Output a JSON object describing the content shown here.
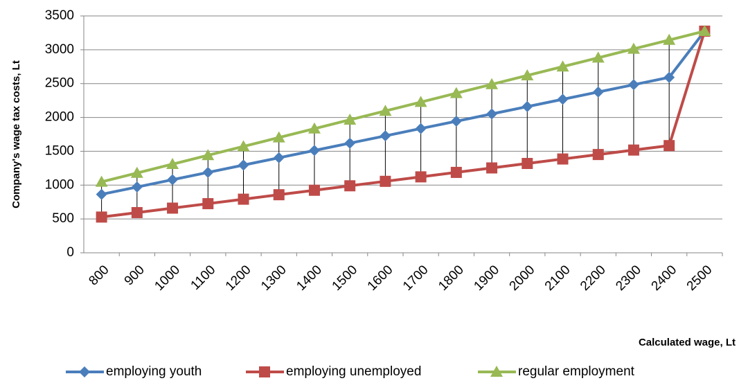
{
  "chart_data": {
    "type": "line",
    "y_axis_label": "Company's  wage tax costs, Lt",
    "x_axis_label": "Calculated wage, Lt",
    "categories": [
      "800",
      "900",
      "1000",
      "1100",
      "1200",
      "1300",
      "1400",
      "1500",
      "1600",
      "1700",
      "1800",
      "1900",
      "2000",
      "2100",
      "2200",
      "2300",
      "2400",
      "2500"
    ],
    "series": [
      {
        "name": "employing youth",
        "color": "#4a7ebb",
        "marker": "diamond",
        "values": [
          864,
          972,
          1080,
          1188,
          1296,
          1404,
          1512,
          1620,
          1728,
          1836,
          1944,
          2052,
          2160,
          2268,
          2376,
          2484,
          2592,
          3275
        ]
      },
      {
        "name": "employing unemployed",
        "color": "#be4b48",
        "marker": "square",
        "values": [
          528,
          594,
          660,
          726,
          792,
          858,
          924,
          990,
          1056,
          1122,
          1188,
          1254,
          1320,
          1386,
          1452,
          1518,
          1584,
          3275
        ]
      },
      {
        "name": "regular employment",
        "color": "#98b954",
        "marker": "triangle",
        "values": [
          1048,
          1179,
          1310,
          1441,
          1572,
          1703,
          1834,
          1965,
          2096,
          2227,
          2358,
          2489,
          2620,
          2751,
          2882,
          3013,
          3144,
          3275
        ]
      }
    ],
    "ylim": [
      0,
      3500
    ],
    "yticks": [
      0,
      500,
      1000,
      1500,
      2000,
      2500,
      3000,
      3500
    ],
    "grid": true,
    "high_low_lines": true,
    "legend": "bottom"
  }
}
